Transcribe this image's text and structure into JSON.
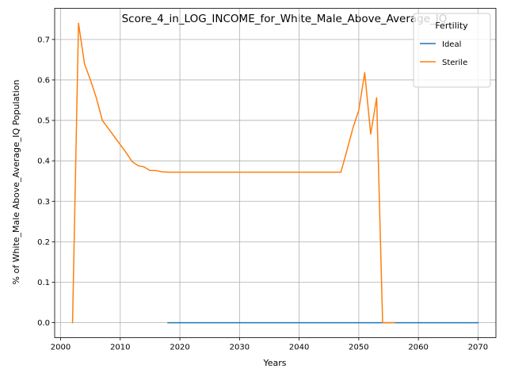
{
  "chart_data": {
    "type": "line",
    "title": "Score_4_in_LOG_INCOME_for_White_Male_Above_Average_IQ",
    "xlabel": "Years",
    "ylabel": "% of White_Male Above_Average_IQ Population",
    "xlim": [
      1999,
      2073
    ],
    "ylim": [
      -0.037,
      0.777
    ],
    "xticks": [
      2000,
      2010,
      2020,
      2030,
      2040,
      2050,
      2060,
      2070
    ],
    "yticks": [
      0.0,
      0.1,
      0.2,
      0.3,
      0.4,
      0.5,
      0.6,
      0.7
    ],
    "xtick_labels": [
      "2000",
      "2010",
      "2020",
      "2030",
      "2040",
      "2050",
      "2060",
      "2070"
    ],
    "ytick_labels": [
      "0.0",
      "0.1",
      "0.2",
      "0.3",
      "0.4",
      "0.5",
      "0.6",
      "0.7"
    ],
    "grid": true,
    "legend": {
      "title": "Fertility",
      "placement": "top-right"
    },
    "series": [
      {
        "name": "Ideal",
        "color": "#1f77b4",
        "x": [
          2018,
          2070
        ],
        "y": [
          0.0,
          0.0
        ]
      },
      {
        "name": "Sterile",
        "color": "#ff7f0e",
        "x": [
          2002,
          2003,
          2004,
          2005,
          2006,
          2007,
          2008,
          2009,
          2010,
          2011,
          2012,
          2013,
          2014,
          2015,
          2016,
          2017,
          2018,
          2019,
          2020,
          2025,
          2030,
          2035,
          2040,
          2045,
          2047,
          2048,
          2049,
          2050,
          2051,
          2052,
          2053,
          2054,
          2055,
          2056
        ],
        "y": [
          0.0,
          0.74,
          0.64,
          0.6,
          0.555,
          0.5,
          0.48,
          0.46,
          0.44,
          0.42,
          0.398,
          0.388,
          0.385,
          0.376,
          0.376,
          0.373,
          0.372,
          0.372,
          0.372,
          0.372,
          0.372,
          0.372,
          0.372,
          0.372,
          0.372,
          0.425,
          0.48,
          0.525,
          0.618,
          0.466,
          0.556,
          0.0,
          0.0,
          0.0
        ]
      }
    ]
  }
}
